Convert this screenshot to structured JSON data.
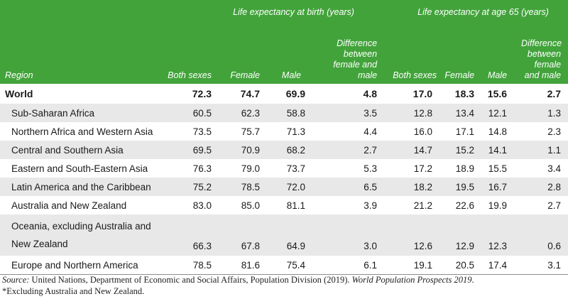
{
  "header": {
    "group_birth": "Life expectancy at birth (years)",
    "group_65": "Life expectancy at age 65 (years)",
    "region": "Region",
    "both": "Both sexes",
    "female": "Female",
    "male": "Male",
    "diff": "Difference between female and male"
  },
  "rows": [
    {
      "region": "World",
      "b_both": "72.3",
      "b_f": "74.7",
      "b_m": "69.9",
      "b_d": "4.8",
      "s_both": "17.0",
      "s_f": "18.3",
      "s_m": "15.6",
      "s_d": "2.7"
    },
    {
      "region": "Sub-Saharan Africa",
      "b_both": "60.5",
      "b_f": "62.3",
      "b_m": "58.8",
      "b_d": "3.5",
      "s_both": "12.8",
      "s_f": "13.4",
      "s_m": "12.1",
      "s_d": "1.3"
    },
    {
      "region": "Northern Africa and Western Asia",
      "b_both": "73.5",
      "b_f": "75.7",
      "b_m": "71.3",
      "b_d": "4.4",
      "s_both": "16.0",
      "s_f": "17.1",
      "s_m": "14.8",
      "s_d": "2.3"
    },
    {
      "region": "Central and Southern Asia",
      "b_both": "69.5",
      "b_f": "70.9",
      "b_m": "68.2",
      "b_d": "2.7",
      "s_both": "14.7",
      "s_f": "15.2",
      "s_m": "14.1",
      "s_d": "1.1"
    },
    {
      "region": "Eastern and South-Eastern Asia",
      "b_both": "76.3",
      "b_f": "79.0",
      "b_m": "73.7",
      "b_d": "5.3",
      "s_both": "17.2",
      "s_f": "18.9",
      "s_m": "15.5",
      "s_d": "3.4"
    },
    {
      "region": "Latin America and the Caribbean",
      "b_both": "75.2",
      "b_f": "78.5",
      "b_m": "72.0",
      "b_d": "6.5",
      "s_both": "18.2",
      "s_f": "19.5",
      "s_m": "16.7",
      "s_d": "2.8"
    },
    {
      "region": "Australia and New Zealand",
      "b_both": "83.0",
      "b_f": "85.0",
      "b_m": "81.1",
      "b_d": "3.9",
      "s_both": "21.2",
      "s_f": "22.6",
      "s_m": "19.9",
      "s_d": "2.7"
    },
    {
      "region": "Oceania, excluding Australia and New Zealand",
      "b_both": "66.3",
      "b_f": "67.8",
      "b_m": "64.9",
      "b_d": "3.0",
      "s_both": "12.6",
      "s_f": "12.9",
      "s_m": "12.3",
      "s_d": "0.6"
    },
    {
      "region": "Europe and Northern America",
      "b_both": "78.5",
      "b_f": "81.6",
      "b_m": "75.4",
      "b_d": "6.1",
      "s_both": "19.1",
      "s_f": "20.5",
      "s_m": "17.4",
      "s_d": "3.1"
    }
  ],
  "source": {
    "label": "Source:",
    "text": " United Nations, Department of Economic and Social Affairs, Population Division (2019). ",
    "title": "World Population Prospects 2019",
    "end": "."
  },
  "footnote": "*Excluding Australia and New Zealand."
}
